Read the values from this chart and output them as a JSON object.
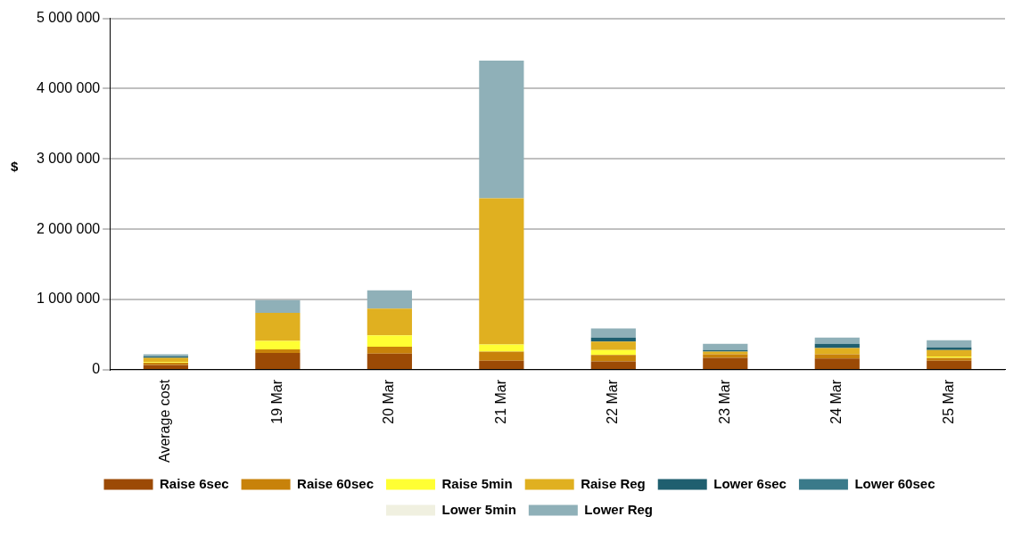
{
  "chart_data": {
    "type": "bar",
    "stacked": true,
    "ylabel": "$",
    "categories": [
      "Average cost",
      "19 Mar",
      "20 Mar",
      "21 Mar",
      "22 Mar",
      "23 Mar",
      "24 Mar",
      "25 Mar"
    ],
    "series": [
      {
        "name": "Raise 6sec",
        "color": "#9c4a05",
        "values": [
          70000,
          240000,
          230000,
          130000,
          120000,
          170000,
          160000,
          130000
        ]
      },
      {
        "name": "Raise 60sec",
        "color": "#c8820a",
        "values": [
          30000,
          50000,
          100000,
          130000,
          90000,
          50000,
          60000,
          40000
        ]
      },
      {
        "name": "Raise 5min",
        "color": "#ffff33",
        "values": [
          10000,
          120000,
          160000,
          100000,
          70000,
          0,
          0,
          20000
        ]
      },
      {
        "name": "Raise Reg",
        "color": "#e0b020",
        "values": [
          60000,
          400000,
          380000,
          2080000,
          120000,
          40000,
          90000,
          90000
        ]
      },
      {
        "name": "Lower 6sec",
        "color": "#1f5f6f",
        "values": [
          20000,
          0,
          0,
          0,
          60000,
          20000,
          60000,
          40000
        ]
      },
      {
        "name": "Lower 60sec",
        "color": "#3a7a8a",
        "values": [
          0,
          0,
          0,
          0,
          0,
          0,
          0,
          0
        ]
      },
      {
        "name": "Lower 5min",
        "color": "#f0f0e0",
        "values": [
          0,
          0,
          0,
          0,
          0,
          0,
          0,
          0
        ]
      },
      {
        "name": "Lower Reg",
        "color": "#8fb0b8",
        "values": [
          30000,
          180000,
          260000,
          1960000,
          130000,
          90000,
          90000,
          100000
        ]
      }
    ],
    "ylim": [
      0,
      5000000
    ],
    "yticks": [
      {
        "value": 0,
        "label": "0"
      },
      {
        "value": 1000000,
        "label": "1 000 000"
      },
      {
        "value": 2000000,
        "label": "2 000 000"
      },
      {
        "value": 3000000,
        "label": "3 000 000"
      },
      {
        "value": 4000000,
        "label": "4 000 000"
      },
      {
        "value": 5000000,
        "label": "5 000 000"
      }
    ],
    "grid": "y",
    "legend": "bottom"
  }
}
